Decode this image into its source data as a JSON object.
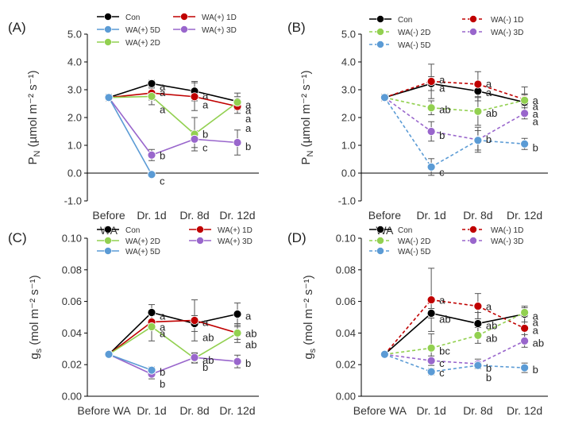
{
  "chart_data": [
    {
      "type": "line",
      "panel_label": "(A)",
      "ylabel_main": "P",
      "ylabel_sub": "N",
      "ylabel_rest": " (µmol m⁻² s⁻¹)",
      "ylim": [
        -1.0,
        5.0
      ],
      "yticks": [
        "-1.0",
        "0.0",
        "1.0",
        "2.0",
        "3.0",
        "4.0",
        "5.0"
      ],
      "categories": [
        "Before WA",
        "Dr. 1d",
        "Dr. 8d",
        "Dr. 12d"
      ],
      "category_layout": "two-line",
      "legend": [
        {
          "label": "Con",
          "series": "Con"
        },
        {
          "label": "WA(+) 1D",
          "series": "WA(+) 1D"
        },
        {
          "label": "WA(+) 5D",
          "series": "WA(+) 5D"
        },
        {
          "label": "WA(+) 3D",
          "series": "WA(+) 3D"
        },
        {
          "label": "WA(+) 2D",
          "series": "WA(+) 2D"
        }
      ],
      "series": [
        {
          "name": "Con",
          "color": "#000000",
          "dash": false,
          "values": [
            2.72,
            3.22,
            2.95,
            2.58
          ],
          "errors": [
            0.12,
            0.12,
            0.35,
            0.3
          ]
        },
        {
          "name": "WA(+) 1D",
          "color": "#c00000",
          "dash": false,
          "values": [
            2.72,
            2.88,
            2.75,
            2.4
          ],
          "errors": [
            0.1,
            0.25,
            0.5,
            0.25
          ]
        },
        {
          "name": "WA(+) 2D",
          "color": "#92d050",
          "dash": false,
          "values": [
            2.72,
            2.76,
            1.4,
            2.55
          ],
          "errors": [
            0.1,
            0.3,
            0.6,
            0.2
          ]
        },
        {
          "name": "WA(+) 3D",
          "color": "#9966cc",
          "dash": false,
          "values": [
            2.72,
            0.65,
            1.22,
            1.1
          ],
          "errors": [
            0.1,
            0.2,
            0.3,
            0.45
          ]
        },
        {
          "name": "WA(+) 5D",
          "color": "#5b9bd5",
          "dash": false,
          "values": [
            2.72,
            -0.05,
            null,
            null
          ],
          "errors": [
            0.1,
            0.05,
            0,
            0
          ]
        }
      ],
      "annotations": [
        {
          "text": "a",
          "cat": 1,
          "y": 3.1
        },
        {
          "text": "a",
          "cat": 1,
          "y": 2.27
        },
        {
          "text": "a",
          "cat": 1,
          "y": 2.88
        },
        {
          "text": "b",
          "cat": 1,
          "y": 0.62
        },
        {
          "text": "c",
          "cat": 1,
          "y": -0.3
        },
        {
          "text": "a",
          "cat": 2,
          "y": 2.78
        },
        {
          "text": "a",
          "cat": 2,
          "y": 2.45
        },
        {
          "text": "b",
          "cat": 2,
          "y": 1.38
        },
        {
          "text": "c",
          "cat": 2,
          "y": 0.9
        },
        {
          "text": "a",
          "cat": 3,
          "y": 2.45
        },
        {
          "text": "a",
          "cat": 3,
          "y": 2.25
        },
        {
          "text": "a",
          "cat": 3,
          "y": 1.95
        },
        {
          "text": "a",
          "cat": 3,
          "y": 1.6
        },
        {
          "text": "b",
          "cat": 3,
          "y": 0.95
        }
      ]
    },
    {
      "type": "line",
      "panel_label": "(B)",
      "ylabel_main": "P",
      "ylabel_sub": "N",
      "ylabel_rest": " (µmol m⁻² s⁻¹)",
      "ylim": [
        -1.0,
        5.0
      ],
      "yticks": [
        "-1.0",
        "0.0",
        "1.0",
        "2.0",
        "3.0",
        "4.0",
        "5.0"
      ],
      "categories": [
        "Before WA",
        "Dr. 1d",
        "Dr. 8d",
        "Dr. 12d"
      ],
      "category_layout": "two-line",
      "legend": [
        {
          "label": "Con",
          "series": "Con"
        },
        {
          "label": "WA(-) 1D",
          "series": "WA(-) 1D"
        },
        {
          "label": "WA(-) 2D",
          "series": "WA(-) 2D"
        },
        {
          "label": "WA(-) 3D",
          "series": "WA(-) 3D"
        },
        {
          "label": "WA(-) 5D",
          "series": "WA(-) 5D"
        }
      ],
      "series": [
        {
          "name": "Con",
          "color": "#000000",
          "dash": false,
          "values": [
            2.72,
            3.22,
            2.95,
            2.55
          ],
          "errors": [
            0.12,
            0.25,
            0.35,
            0.3
          ]
        },
        {
          "name": "WA(-) 1D",
          "color": "#c00000",
          "dash": true,
          "values": [
            2.72,
            3.3,
            3.2,
            2.65
          ],
          "errors": [
            0.1,
            0.62,
            0.45,
            0.45
          ]
        },
        {
          "name": "WA(-) 2D",
          "color": "#92d050",
          "dash": true,
          "values": [
            2.72,
            2.35,
            2.22,
            2.62
          ],
          "errors": [
            0.1,
            0.25,
            0.5,
            0.2
          ]
        },
        {
          "name": "WA(-) 3D",
          "color": "#9966cc",
          "dash": true,
          "values": [
            2.72,
            1.5,
            1.2,
            2.15
          ],
          "errors": [
            0.1,
            0.35,
            0.45,
            0.2
          ]
        },
        {
          "name": "WA(-) 5D",
          "color": "#5b9bd5",
          "dash": true,
          "values": [
            2.72,
            0.22,
            1.18,
            1.05
          ],
          "errors": [
            0.1,
            0.3,
            0.35,
            0.2
          ]
        }
      ],
      "annotations": [
        {
          "text": "a",
          "cat": 1,
          "y": 3.35
        },
        {
          "text": "a",
          "cat": 1,
          "y": 3.05
        },
        {
          "text": "ab",
          "cat": 1,
          "y": 2.27
        },
        {
          "text": "b",
          "cat": 1,
          "y": 1.35
        },
        {
          "text": "c",
          "cat": 1,
          "y": 0.02
        },
        {
          "text": "a",
          "cat": 2,
          "y": 3.2
        },
        {
          "text": "a",
          "cat": 2,
          "y": 2.88
        },
        {
          "text": "ab",
          "cat": 2,
          "y": 2.15
        },
        {
          "text": "b",
          "cat": 2,
          "y": 1.2
        },
        {
          "text": "a",
          "cat": 3,
          "y": 2.6
        },
        {
          "text": "a",
          "cat": 3,
          "y": 2.38
        },
        {
          "text": "a",
          "cat": 3,
          "y": 2.12
        },
        {
          "text": "a",
          "cat": 3,
          "y": 1.85
        },
        {
          "text": "b",
          "cat": 3,
          "y": 0.9
        }
      ]
    },
    {
      "type": "line",
      "panel_label": "(C)",
      "ylabel_main": "g",
      "ylabel_sub": "s",
      "ylabel_rest": " (mol m⁻² s⁻¹)",
      "ylim": [
        0.0,
        0.1
      ],
      "yticks": [
        "0.00",
        "0.02",
        "0.04",
        "0.06",
        "0.08",
        "0.10"
      ],
      "categories": [
        "Before WA",
        "Dr. 1d",
        "Dr. 8d",
        "Dr. 12d"
      ],
      "category_layout": "one-line",
      "legend": [
        {
          "label": "Con",
          "series": "Con"
        },
        {
          "label": "WA(+) 1D",
          "series": "WA(+) 1D"
        },
        {
          "label": "WA(+) 2D",
          "series": "WA(+) 2D"
        },
        {
          "label": "WA(+) 3D",
          "series": "WA(+) 3D"
        },
        {
          "label": "WA(+) 5D",
          "series": "WA(+) 5D"
        }
      ],
      "series": [
        {
          "name": "Con",
          "color": "#000000",
          "dash": false,
          "values": [
            0.0265,
            0.053,
            0.046,
            0.052
          ],
          "errors": [
            0.001,
            0.005,
            0.005,
            0.007
          ]
        },
        {
          "name": "WA(+) 1D",
          "color": "#c00000",
          "dash": false,
          "values": [
            0.0265,
            0.047,
            0.048,
            0.04
          ],
          "errors": [
            0.001,
            0.004,
            0.013,
            0.006
          ]
        },
        {
          "name": "WA(+) 2D",
          "color": "#92d050",
          "dash": false,
          "values": [
            0.0265,
            0.044,
            0.024,
            0.04
          ],
          "errors": [
            0.001,
            0.009,
            0.003,
            0.004
          ]
        },
        {
          "name": "WA(+) 3D",
          "color": "#9966cc",
          "dash": false,
          "values": [
            0.0265,
            0.014,
            0.0245,
            0.022
          ],
          "errors": [
            0.001,
            0.003,
            0.003,
            0.004
          ]
        },
        {
          "name": "WA(+) 5D",
          "color": "#5b9bd5",
          "dash": false,
          "values": [
            0.0265,
            0.0165,
            null,
            null
          ],
          "errors": [
            0.001,
            0.002,
            0,
            0
          ]
        }
      ],
      "annotations": [
        {
          "text": "a",
          "cat": 1,
          "y": 0.0505
        },
        {
          "text": "a",
          "cat": 1,
          "y": 0.0435
        },
        {
          "text": "a",
          "cat": 1,
          "y": 0.0395
        },
        {
          "text": "b",
          "cat": 1,
          "y": 0.0152
        },
        {
          "text": "b",
          "cat": 1,
          "y": 0.0075
        },
        {
          "text": "a",
          "cat": 2,
          "y": 0.0465
        },
        {
          "text": "ab",
          "cat": 2,
          "y": 0.037
        },
        {
          "text": "ab",
          "cat": 2,
          "y": 0.0225
        },
        {
          "text": "b",
          "cat": 2,
          "y": 0.018
        },
        {
          "text": "a",
          "cat": 3,
          "y": 0.0505
        },
        {
          "text": "ab",
          "cat": 3,
          "y": 0.0395
        },
        {
          "text": "ab",
          "cat": 3,
          "y": 0.0325
        },
        {
          "text": "b",
          "cat": 3,
          "y": 0.0205
        }
      ]
    },
    {
      "type": "line",
      "panel_label": "(D)",
      "ylabel_main": "g",
      "ylabel_sub": "s",
      "ylabel_rest": " (mol m⁻² s⁻¹)",
      "ylim": [
        0.0,
        0.1
      ],
      "yticks": [
        "0.00",
        "0.02",
        "0.04",
        "0.06",
        "0.08",
        "0.10"
      ],
      "categories": [
        "Before WA",
        "Dr. 1d",
        "Dr. 8d",
        "Dr. 12d"
      ],
      "category_layout": "one-line",
      "legend": [
        {
          "label": "Con",
          "series": "Con"
        },
        {
          "label": "WA(-) 1D",
          "series": "WA(-) 1D"
        },
        {
          "label": "WA(-) 2D",
          "series": "WA(-) 2D"
        },
        {
          "label": "WA(-) 3D",
          "series": "WA(-) 3D"
        },
        {
          "label": "WA(-) 5D",
          "series": "WA(-) 5D"
        }
      ],
      "series": [
        {
          "name": "Con",
          "color": "#000000",
          "dash": false,
          "values": [
            0.0265,
            0.0525,
            0.046,
            0.052
          ],
          "errors": [
            0.001,
            0.003,
            0.007,
            0.005
          ]
        },
        {
          "name": "WA(-) 1D",
          "color": "#c00000",
          "dash": true,
          "values": [
            0.0265,
            0.061,
            0.057,
            0.043
          ],
          "errors": [
            0.001,
            0.02,
            0.008,
            0.009
          ]
        },
        {
          "name": "WA(-) 2D",
          "color": "#92d050",
          "dash": true,
          "values": [
            0.0265,
            0.0305,
            0.0385,
            0.053
          ],
          "errors": [
            0.001,
            0.009,
            0.005,
            0.003
          ]
        },
        {
          "name": "WA(-) 3D",
          "color": "#9966cc",
          "dash": true,
          "values": [
            0.0265,
            0.0225,
            0.0205,
            0.035
          ],
          "errors": [
            0.001,
            0.003,
            0.003,
            0.004
          ]
        },
        {
          "name": "WA(-) 5D",
          "color": "#5b9bd5",
          "dash": true,
          "values": [
            0.0265,
            0.0155,
            0.0195,
            0.018
          ],
          "errors": [
            0.001,
            0.002,
            0.002,
            0.003
          ]
        }
      ],
      "annotations": [
        {
          "text": "a",
          "cat": 1,
          "y": 0.0605
        },
        {
          "text": "ab",
          "cat": 1,
          "y": 0.0485
        },
        {
          "text": "bc",
          "cat": 1,
          "y": 0.0285
        },
        {
          "text": "c",
          "cat": 1,
          "y": 0.0205
        },
        {
          "text": "c",
          "cat": 1,
          "y": 0.0145
        },
        {
          "text": "a",
          "cat": 2,
          "y": 0.0565
        },
        {
          "text": "ab",
          "cat": 2,
          "y": 0.0445
        },
        {
          "text": "ab",
          "cat": 2,
          "y": 0.0365
        },
        {
          "text": "b",
          "cat": 2,
          "y": 0.0175
        },
        {
          "text": "b",
          "cat": 2,
          "y": 0.0115
        },
        {
          "text": "a",
          "cat": 3,
          "y": 0.0505
        },
        {
          "text": "a",
          "cat": 3,
          "y": 0.0465
        },
        {
          "text": "a",
          "cat": 3,
          "y": 0.0415
        },
        {
          "text": "ab",
          "cat": 3,
          "y": 0.0335
        },
        {
          "text": "b",
          "cat": 3,
          "y": 0.0165
        }
      ]
    }
  ]
}
